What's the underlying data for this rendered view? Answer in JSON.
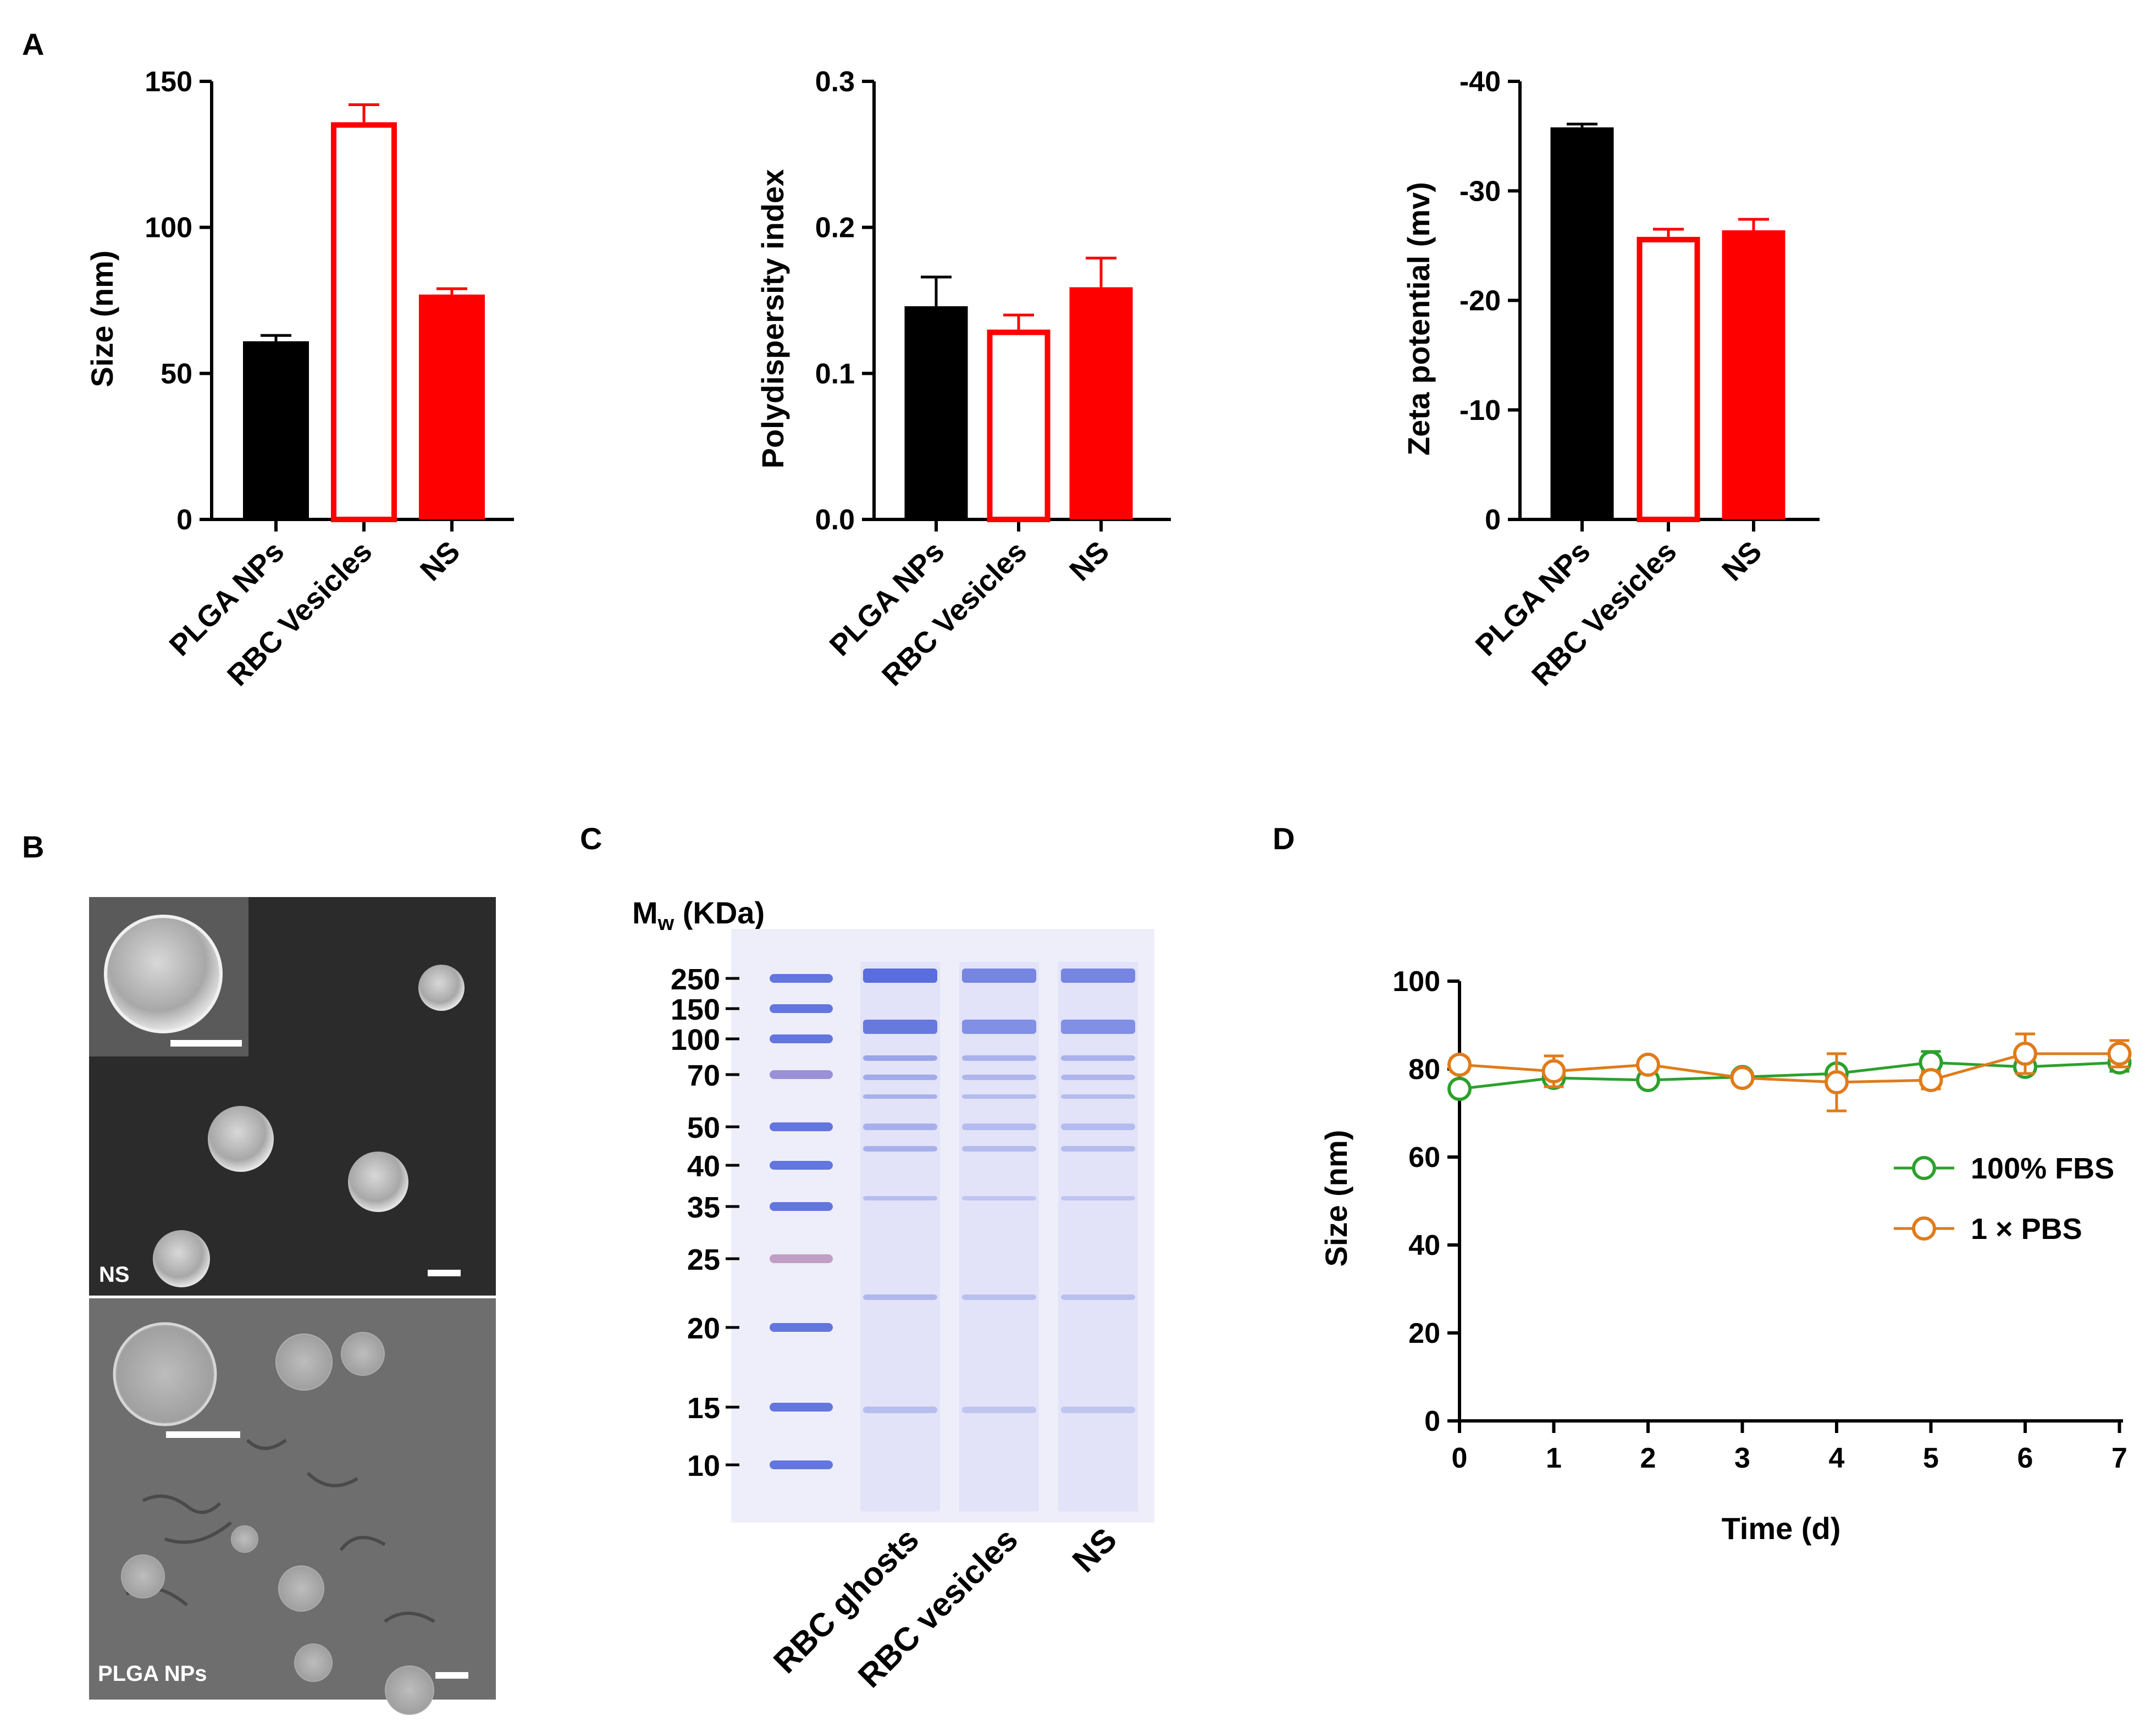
{
  "panel_labels": {
    "A": "A",
    "B": "B",
    "C": "C",
    "D": "D"
  },
  "colors": {
    "black": "#000000",
    "red": "#ff0000",
    "green": "#2ca02c",
    "orange": "#e07b1a",
    "gel_band": "#4a5fd8",
    "gel_bg": "#eeeefb"
  },
  "chart_data": [
    {
      "id": "A1",
      "type": "bar",
      "ylabel": "Size (nm)",
      "categories": [
        "PLGA NPs",
        "RBC Vesicles",
        "NS"
      ],
      "values": [
        61,
        136,
        77
      ],
      "errors": [
        2,
        6,
        2
      ],
      "styles": [
        "solid-black",
        "hollow-red",
        "solid-red"
      ],
      "ylim": [
        0,
        150
      ],
      "yticks": [
        "0",
        "50",
        "100",
        "150"
      ],
      "ytick_values": [
        0,
        50,
        100,
        150
      ]
    },
    {
      "id": "A2",
      "type": "bar",
      "ylabel": "Polydispersity index",
      "categories": [
        "PLGA NPs",
        "RBC Vesicles",
        "NS"
      ],
      "values": [
        0.146,
        0.13,
        0.159
      ],
      "errors": [
        0.02,
        0.01,
        0.02
      ],
      "styles": [
        "solid-black",
        "hollow-red",
        "solid-red"
      ],
      "ylim": [
        0,
        0.3
      ],
      "yticks": [
        "0.0",
        "0.1",
        "0.2",
        "0.3"
      ],
      "ytick_values": [
        0,
        0.1,
        0.2,
        0.3
      ]
    },
    {
      "id": "A3",
      "type": "bar",
      "ylabel": "Zeta potential (mv)",
      "categories": [
        "PLGA NPs",
        "RBC Vesicles",
        "NS"
      ],
      "values": [
        -35.8,
        -25.8,
        -26.4
      ],
      "errors": [
        0.3,
        0.7,
        1.0
      ],
      "styles": [
        "solid-black",
        "hollow-red",
        "solid-red"
      ],
      "ylim": [
        0,
        -40
      ],
      "yticks": [
        "0",
        "-10",
        "-20",
        "-30",
        "-40"
      ],
      "ytick_values": [
        0,
        -10,
        -20,
        -30,
        -40
      ]
    },
    {
      "id": "D",
      "type": "line",
      "xlabel": "Time (d)",
      "ylabel": "Size (nm)",
      "x": [
        0,
        1,
        2,
        3,
        4,
        5,
        6,
        7
      ],
      "xticks": [
        "0",
        "1",
        "2",
        "3",
        "4",
        "5",
        "6",
        "7"
      ],
      "ylim": [
        0,
        100
      ],
      "yticks": [
        "0",
        "20",
        "40",
        "60",
        "80",
        "100"
      ],
      "ytick_values": [
        0,
        20,
        40,
        60,
        80,
        100
      ],
      "series": [
        {
          "name": "100% FBS",
          "color": "#2ca02c",
          "values": [
            75.5,
            78.0,
            77.5,
            78.2,
            79.0,
            81.5,
            80.5,
            81.5
          ],
          "errors": [
            1.0,
            1.0,
            1.2,
            0.8,
            1.0,
            2.5,
            1.2,
            2.0
          ]
        },
        {
          "name": "1 × PBS",
          "color": "#e07b1a",
          "values": [
            81.0,
            79.5,
            81.0,
            78.0,
            77.0,
            77.5,
            83.5,
            83.5
          ],
          "errors": [
            1.5,
            3.5,
            1.0,
            1.0,
            6.5,
            2.0,
            4.5,
            3.0
          ]
        }
      ]
    }
  ],
  "tem": {
    "top_label": "NS",
    "bottom_label": "PLGA NPs"
  },
  "gel": {
    "header_main": "M",
    "header_sub": "w",
    "header_rest": " (KDa)",
    "markers": [
      "250",
      "150",
      "100",
      "70",
      "50",
      "40",
      "35",
      "25",
      "20",
      "15",
      "10"
    ],
    "lanes": [
      "RBC ghosts",
      "RBC vesicles",
      "NS"
    ]
  }
}
